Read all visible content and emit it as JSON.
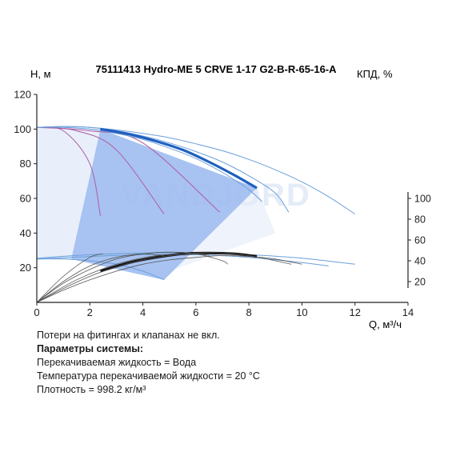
{
  "chart_data": {
    "type": "line",
    "title": "75111413 Hydro-ME 5 CRVE 1-17 G2-B-R-65-16-A",
    "ylabel_left": "H, м",
    "ylabel_right": "КПД, %",
    "xlabel": "Q, м³/ч",
    "xlim": [
      0,
      14
    ],
    "ylim": [
      0,
      120
    ],
    "x_ticks": [
      "0",
      "2",
      "4",
      "6",
      "8",
      "10",
      "12",
      "14"
    ],
    "y_ticks": [
      "20",
      "40",
      "60",
      "80",
      "100",
      "120"
    ],
    "y2_ticks": [
      "20",
      "40",
      "60",
      "80",
      "100"
    ],
    "y2_range_in_H_units": [
      12,
      60
    ],
    "watermark": "VANDJORD",
    "head_curves": [
      {
        "role": "main-curve",
        "x": [
          2.4,
          3.5,
          4.5,
          5.5,
          6.5,
          7.5,
          8.3
        ],
        "y": [
          100,
          97,
          93,
          88,
          81,
          73,
          66
        ]
      },
      {
        "role": "max-speed-curve",
        "x": [
          0,
          1,
          2,
          3,
          4,
          5,
          6,
          7,
          8,
          9,
          10,
          11,
          12
        ],
        "y": [
          101,
          101.5,
          101,
          99.5,
          97.5,
          95,
          91.5,
          87.5,
          82.5,
          76.5,
          69.5,
          61,
          51
        ]
      },
      {
        "role": "speed-curve",
        "x": [
          0,
          1,
          2,
          3,
          4,
          5,
          6,
          7,
          8,
          9,
          9.5
        ],
        "y": [
          101,
          101.5,
          101,
          99,
          96,
          92,
          87,
          81,
          73,
          63,
          52
        ]
      },
      {
        "role": "speed-curve",
        "x": [
          0,
          1,
          2,
          3,
          4,
          5,
          6,
          7,
          8,
          8.5
        ],
        "y": [
          101,
          101,
          100,
          97.5,
          94,
          89,
          83,
          75,
          65,
          58
        ]
      },
      {
        "role": "low-speed-curve",
        "x": [
          0,
          1,
          2,
          3,
          4,
          4.8
        ],
        "y": [
          25,
          25,
          24,
          22,
          18,
          13
        ]
      },
      {
        "role": "low-speed-curve",
        "x": [
          0,
          2,
          4,
          6,
          8,
          10,
          12
        ],
        "y": [
          25.5,
          27.5,
          28.5,
          28.5,
          27.5,
          25.5,
          22
        ]
      },
      {
        "role": "low-speed-curve",
        "x": [
          0,
          2,
          4,
          6,
          8,
          10,
          11
        ],
        "y": [
          25,
          26.5,
          27.5,
          27.5,
          26,
          23,
          21
        ]
      }
    ],
    "power_curves": [
      {
        "x": [
          0,
          1,
          2,
          2.4
        ],
        "y": [
          101,
          99,
          80,
          50
        ]
      },
      {
        "x": [
          0,
          1.5,
          3,
          4.8
        ],
        "y": [
          101,
          99,
          88,
          51
        ]
      },
      {
        "x": [
          0,
          2,
          4,
          6.9
        ],
        "y": [
          101,
          99,
          92,
          52
        ]
      }
    ],
    "efficiency_curves": [
      {
        "role": "main-efficiency",
        "x": [
          2.4,
          3.5,
          4.5,
          5.5,
          6.5,
          7.5,
          8.3
        ],
        "y": [
          18,
          23,
          26,
          28,
          28.5,
          28,
          26.5
        ]
      },
      {
        "x": [
          0,
          1,
          2,
          3,
          4,
          5,
          6,
          7,
          7.2
        ],
        "y": [
          0,
          11,
          19,
          25,
          28,
          29,
          28,
          24,
          22
        ]
      },
      {
        "x": [
          0,
          1,
          2,
          3,
          4,
          5,
          6,
          7,
          8,
          9,
          9.6
        ],
        "y": [
          0,
          8,
          15,
          20.5,
          24.5,
          27,
          28.5,
          28.5,
          27,
          24,
          22
        ]
      },
      {
        "x": [
          0,
          1,
          2,
          3,
          4,
          5,
          6,
          7,
          8,
          9,
          10
        ],
        "y": [
          0,
          7,
          13,
          18,
          22,
          24.5,
          26,
          27,
          26.5,
          25,
          22
        ]
      },
      {
        "x": [
          0,
          1,
          2,
          2.5
        ],
        "y": [
          0,
          15,
          26,
          28
        ]
      },
      {
        "x": [
          0,
          1,
          2,
          3,
          4,
          4.8
        ],
        "y": [
          0,
          12,
          21,
          26,
          28,
          27
        ]
      },
      {
        "x": [
          0,
          1.5,
          3,
          4.5,
          6,
          6.5
        ],
        "y": [
          0,
          13,
          22,
          27,
          28,
          27
        ]
      }
    ],
    "operating_region": [
      [
        2.4,
        100
      ],
      [
        8.3,
        66
      ],
      [
        4.8,
        13
      ],
      [
        1.3,
        25
      ]
    ],
    "upper_band": [
      [
        0,
        101
      ],
      [
        2.4,
        100
      ],
      [
        1.3,
        25
      ],
      [
        0,
        25
      ]
    ]
  },
  "notes": [
    {
      "text": "Потери на фитингах и клапанах не вкл.",
      "bold": false
    },
    {
      "text": "Параметры системы:",
      "bold": true
    },
    {
      "text": "Перекачиваемая жидкость = Вода",
      "bold": false
    },
    {
      "text": "Температура перекачиваемой жидкости = 20 °C",
      "bold": false
    },
    {
      "text": "Плотность = 998.2 кг/м³",
      "bold": false
    }
  ],
  "colors": {
    "main_curve": "#1f5fbf",
    "thin_curve": "#6aa0dc",
    "region": "#9fbcf0",
    "band": "#e4ecfa",
    "power_curve": "#b05aa0",
    "efficiency_main": "#111111",
    "efficiency_thin": "#555555",
    "axis": "#222222"
  }
}
